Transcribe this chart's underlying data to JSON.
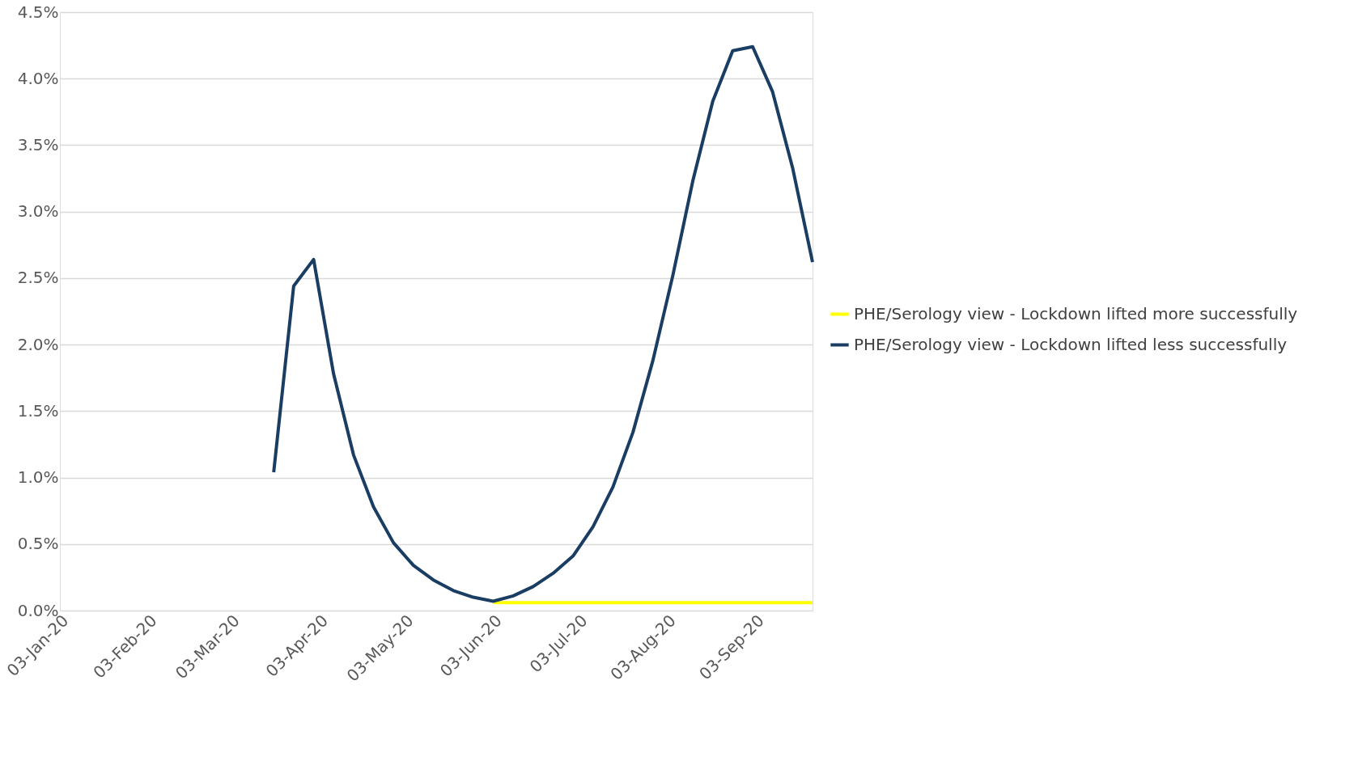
{
  "chart_data": {
    "type": "line",
    "xlim": [
      "2020-01-03",
      "2020-09-23"
    ],
    "xticks": [
      {
        "value": "2020-01-03",
        "label": "03-Jan-20"
      },
      {
        "value": "2020-02-03",
        "label": "03-Feb-20"
      },
      {
        "value": "2020-03-03",
        "label": "03-Mar-20"
      },
      {
        "value": "2020-04-03",
        "label": "03-Apr-20"
      },
      {
        "value": "2020-05-03",
        "label": "03-May-20"
      },
      {
        "value": "2020-06-03",
        "label": "03-Jun-20"
      },
      {
        "value": "2020-07-03",
        "label": "03-Jul-20"
      },
      {
        "value": "2020-08-03",
        "label": "03-Aug-20"
      },
      {
        "value": "2020-09-03",
        "label": "03-Sep-20"
      }
    ],
    "ylim": [
      0,
      4.5
    ],
    "yticks": [
      {
        "value": 0,
        "label": "0.0%"
      },
      {
        "value": 0.5,
        "label": "0.5%"
      },
      {
        "value": 1,
        "label": "1.0%"
      },
      {
        "value": 1.5,
        "label": "1.5%"
      },
      {
        "value": 2,
        "label": "2.0%"
      },
      {
        "value": 2.5,
        "label": "2.5%"
      },
      {
        "value": 3,
        "label": "3.0%"
      },
      {
        "value": 3.5,
        "label": "3.5%"
      },
      {
        "value": 4,
        "label": "4.0%"
      },
      {
        "value": 4.5,
        "label": "4.5%"
      }
    ],
    "grid": "y",
    "legend": "right",
    "marker": "none",
    "line_style": "solid",
    "series": [
      {
        "name": "PHE/Serology view - Lockdown lifted more successfully",
        "color": "#ffff00",
        "x": [
          "2020-06-03",
          "2020-06-10",
          "2020-06-17",
          "2020-06-24",
          "2020-07-01",
          "2020-07-08",
          "2020-07-15",
          "2020-07-22",
          "2020-07-29",
          "2020-08-05",
          "2020-08-12",
          "2020-08-19",
          "2020-08-26",
          "2020-09-02",
          "2020-09-09",
          "2020-09-16",
          "2020-09-23"
        ],
        "values": [
          0.06,
          0.06,
          0.06,
          0.06,
          0.06,
          0.06,
          0.06,
          0.06,
          0.06,
          0.06,
          0.06,
          0.06,
          0.06,
          0.06,
          0.06,
          0.06,
          0.06
        ]
      },
      {
        "name": "PHE/Serology view - Lockdown lifted less successfully",
        "color": "#1a3d63",
        "x": [
          "2020-03-18",
          "2020-03-25",
          "2020-04-01",
          "2020-04-08",
          "2020-04-15",
          "2020-04-22",
          "2020-04-29",
          "2020-05-06",
          "2020-05-13",
          "2020-05-20",
          "2020-05-27",
          "2020-06-03",
          "2020-06-10",
          "2020-06-17",
          "2020-06-24",
          "2020-07-01",
          "2020-07-08",
          "2020-07-15",
          "2020-07-22",
          "2020-07-29",
          "2020-08-05",
          "2020-08-12",
          "2020-08-19",
          "2020-08-26",
          "2020-09-02",
          "2020-09-09",
          "2020-09-16",
          "2020-09-23"
        ],
        "values": [
          1.04,
          2.44,
          2.64,
          1.78,
          1.17,
          0.78,
          0.51,
          0.34,
          0.23,
          0.15,
          0.1,
          0.07,
          0.11,
          0.18,
          0.28,
          0.41,
          0.63,
          0.93,
          1.34,
          1.88,
          2.52,
          3.23,
          3.83,
          4.21,
          4.24,
          3.9,
          3.33,
          2.62
        ]
      }
    ]
  }
}
